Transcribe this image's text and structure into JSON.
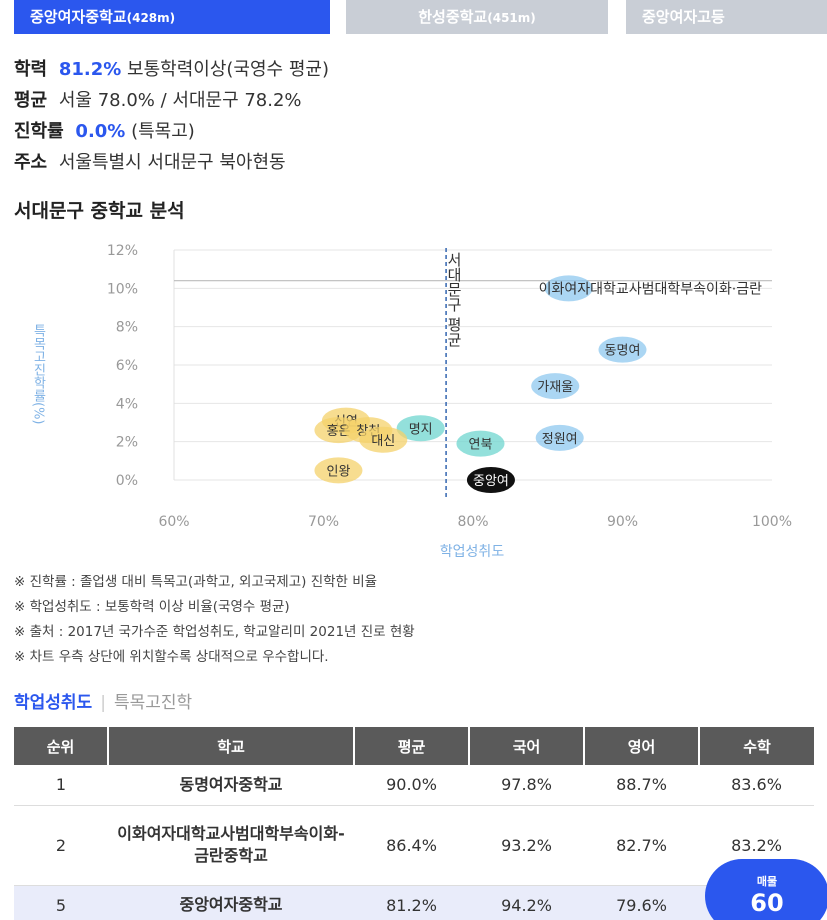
{
  "tabs": [
    {
      "label": "중앙여자중학교",
      "dist": "(428m)"
    },
    {
      "label": "한성중학교",
      "dist": "(451m)"
    },
    {
      "label": "중앙여자고등",
      "dist": ""
    }
  ],
  "info": {
    "academic_label": "학력",
    "academic_value": "81.2%",
    "academic_desc": "보통학력이상(국영수 평균)",
    "avg_label": "평균",
    "avg_text": "서울 78.0% / 서대문구 78.2%",
    "advance_label": "진학률",
    "advance_value": "0.0%",
    "advance_desc": "(특목고)",
    "addr_label": "주소",
    "addr_text": "서울특별시 서대문구 북아현동"
  },
  "section_title": "서대문구 중학교 분석",
  "chart_data": {
    "type": "scatter",
    "xlabel": "학업성취도",
    "ylabel": "특목고진학률(%)",
    "xlim": [
      60,
      100
    ],
    "ylim": [
      0,
      12
    ],
    "xticks": [
      "60%",
      "70%",
      "80%",
      "90%",
      "100%"
    ],
    "yticks": [
      "0%",
      "2%",
      "4%",
      "6%",
      "8%",
      "10%",
      "12%"
    ],
    "avg_line": {
      "x": 78.2,
      "label": "서대문구 평균"
    },
    "hline_y": 10.4,
    "annotation": "이화여자대학교사범대학부속이화·금란",
    "points": [
      {
        "name": "",
        "x": 86.4,
        "y": 10.0,
        "color": "#8fc8ef"
      },
      {
        "name": "동명여",
        "x": 90.0,
        "y": 6.8,
        "color": "#8fc8ef"
      },
      {
        "name": "가재울",
        "x": 85.5,
        "y": 4.9,
        "color": "#8fc8ef"
      },
      {
        "name": "정원여",
        "x": 85.8,
        "y": 2.2,
        "color": "#8fc8ef"
      },
      {
        "name": "연북",
        "x": 80.5,
        "y": 1.9,
        "color": "#6fd6cf"
      },
      {
        "name": "명지",
        "x": 76.5,
        "y": 2.7,
        "color": "#6fd6cf"
      },
      {
        "name": "신연",
        "x": 71.5,
        "y": 3.1,
        "color": "#f4d26b"
      },
      {
        "name": "홍은",
        "x": 71.0,
        "y": 2.6,
        "color": "#f4d26b"
      },
      {
        "name": "창천",
        "x": 73.0,
        "y": 2.6,
        "color": "#f4d26b"
      },
      {
        "name": "대신",
        "x": 74.0,
        "y": 2.1,
        "color": "#f4d26b"
      },
      {
        "name": "인왕",
        "x": 71.0,
        "y": 0.5,
        "color": "#f4d26b"
      },
      {
        "name": "중앙여",
        "x": 81.2,
        "y": 0.0,
        "color": "#111111"
      }
    ]
  },
  "notes": [
    "※ 진학률 : 졸업생 대비 특목고(과학고, 외고국제고) 진학한 비율",
    "※ 학업성취도 : 보통학력 이상 비율(국영수 평균)",
    "※ 출처 : 2017년 국가수준 학업성취도, 학교알리미 2021년 진로 현황",
    "※ 차트 우측 상단에 위치할수록 상대적으로 우수합니다."
  ],
  "subtabs": {
    "active": "학업성취도",
    "inactive": "특목고진학"
  },
  "table": {
    "headers": [
      "순위",
      "학교",
      "평균",
      "국어",
      "영어",
      "수학"
    ],
    "rows": [
      {
        "rank": "1",
        "school": "동명여자중학교",
        "avg": "90.0%",
        "kor": "97.8%",
        "eng": "88.7%",
        "math": "83.6%"
      },
      {
        "rank": "2",
        "school": "이화여자대학교사범대학부속이화-금란중학교",
        "avg": "86.4%",
        "kor": "93.2%",
        "eng": "82.7%",
        "math": "83.2%"
      },
      {
        "rank": "5",
        "school": "중앙여자중학교",
        "avg": "81.2%",
        "kor": "94.2%",
        "eng": "79.6%",
        "math": ""
      }
    ]
  },
  "badge": {
    "label": "매물",
    "count": "60"
  }
}
